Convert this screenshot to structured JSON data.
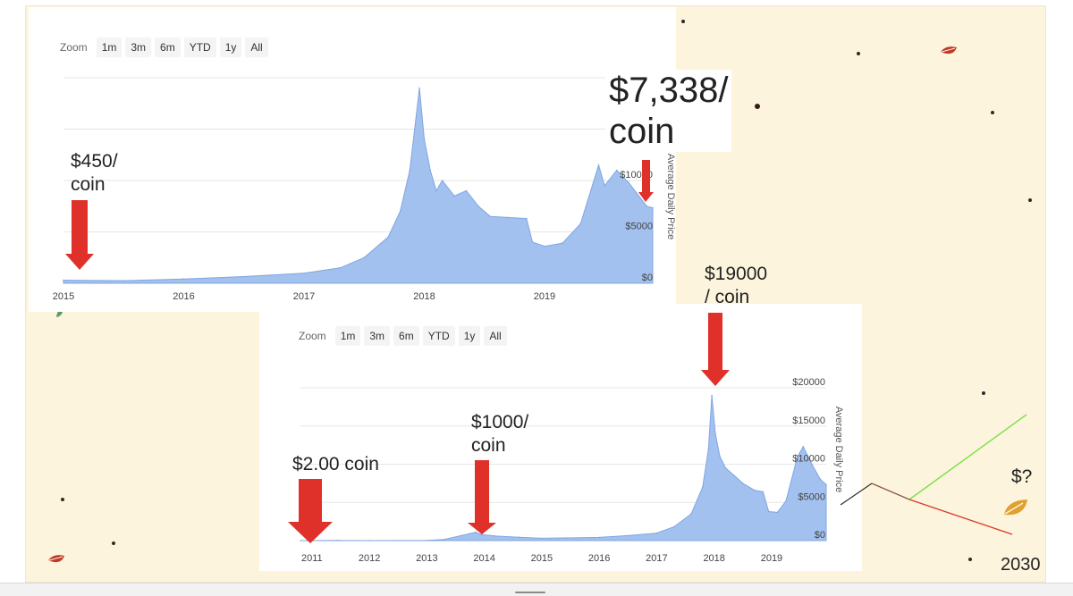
{
  "zoom": {
    "label": "Zoom",
    "buttons": [
      "1m",
      "3m",
      "6m",
      "YTD",
      "1y",
      "All"
    ]
  },
  "annotations": {
    "top_current": {
      "line1": "$7,338/",
      "line2": "coin"
    },
    "top_start": {
      "line1": "$450/",
      "line2": "coin"
    },
    "bottom_peak": {
      "line1": "$19000",
      "line2": "/ coin"
    },
    "bottom_2014": {
      "line1": "$1000/",
      "line2": "coin"
    },
    "bottom_2011": "$2.00 coin",
    "future_question": "$?",
    "future_year": "2030"
  },
  "colors": {
    "area_fill": "#a3c1ee",
    "area_stroke": "#7fa6e3",
    "arrow": "#e0302a",
    "background": "#fcf4dc",
    "projection_up": "#7be04a",
    "projection_down": "#d93a2f",
    "projection_start": "#333333",
    "leaf": "#c0392b",
    "leaf_gold": "#e0a030"
  },
  "icons": {
    "leaf": "leaf-icon"
  },
  "chart_data": [
    {
      "type": "area",
      "ylabel": "Average Daily Price",
      "xlim": [
        2015,
        2019.9
      ],
      "ylim": [
        0,
        20000
      ],
      "x_ticks": [
        "2015",
        "2016",
        "2017",
        "2018",
        "2019"
      ],
      "y_ticks": [
        "$0",
        "$5000",
        "$10000"
      ],
      "x": [
        2015.0,
        2015.5,
        2016.0,
        2016.5,
        2017.0,
        2017.3,
        2017.5,
        2017.7,
        2017.8,
        2017.88,
        2017.92,
        2017.96,
        2018.0,
        2018.05,
        2018.1,
        2018.15,
        2018.25,
        2018.35,
        2018.45,
        2018.55,
        2018.7,
        2018.85,
        2018.9,
        2019.0,
        2019.15,
        2019.3,
        2019.45,
        2019.5,
        2019.6,
        2019.7,
        2019.85,
        2019.9
      ],
      "y": [
        300,
        250,
        420,
        650,
        980,
        1500,
        2500,
        4500,
        7000,
        11000,
        15000,
        19000,
        14000,
        11000,
        9000,
        10000,
        8500,
        9000,
        7500,
        6500,
        6400,
        6300,
        4000,
        3600,
        3900,
        5800,
        11500,
        9500,
        11000,
        9800,
        7500,
        7338
      ]
    },
    {
      "type": "area",
      "ylabel": "Average Daily Price",
      "xlim": [
        2010.8,
        2019.95
      ],
      "ylim": [
        0,
        20000
      ],
      "x_ticks": [
        "2011",
        "2012",
        "2013",
        "2014",
        "2015",
        "2016",
        "2017",
        "2018",
        "2019"
      ],
      "y_ticks": [
        "$0",
        "$5000",
        "$10000",
        "$15000",
        "$20000"
      ],
      "x": [
        2010.8,
        2011.0,
        2011.45,
        2012.0,
        2013.0,
        2013.3,
        2013.85,
        2013.95,
        2014.2,
        2014.6,
        2015.0,
        2016.0,
        2016.5,
        2017.0,
        2017.3,
        2017.6,
        2017.8,
        2017.9,
        2017.96,
        2018.02,
        2018.1,
        2018.2,
        2018.35,
        2018.5,
        2018.7,
        2018.85,
        2018.95,
        2019.1,
        2019.25,
        2019.45,
        2019.55,
        2019.7,
        2019.85,
        2019.95
      ],
      "y": [
        1,
        2,
        25,
        5,
        20,
        150,
        1100,
        800,
        600,
        450,
        300,
        420,
        650,
        980,
        1800,
        3500,
        7000,
        12000,
        19000,
        14000,
        11000,
        9500,
        8500,
        7500,
        6600,
        6400,
        3800,
        3700,
        5200,
        11000,
        12300,
        10000,
        8000,
        7338
      ]
    }
  ]
}
